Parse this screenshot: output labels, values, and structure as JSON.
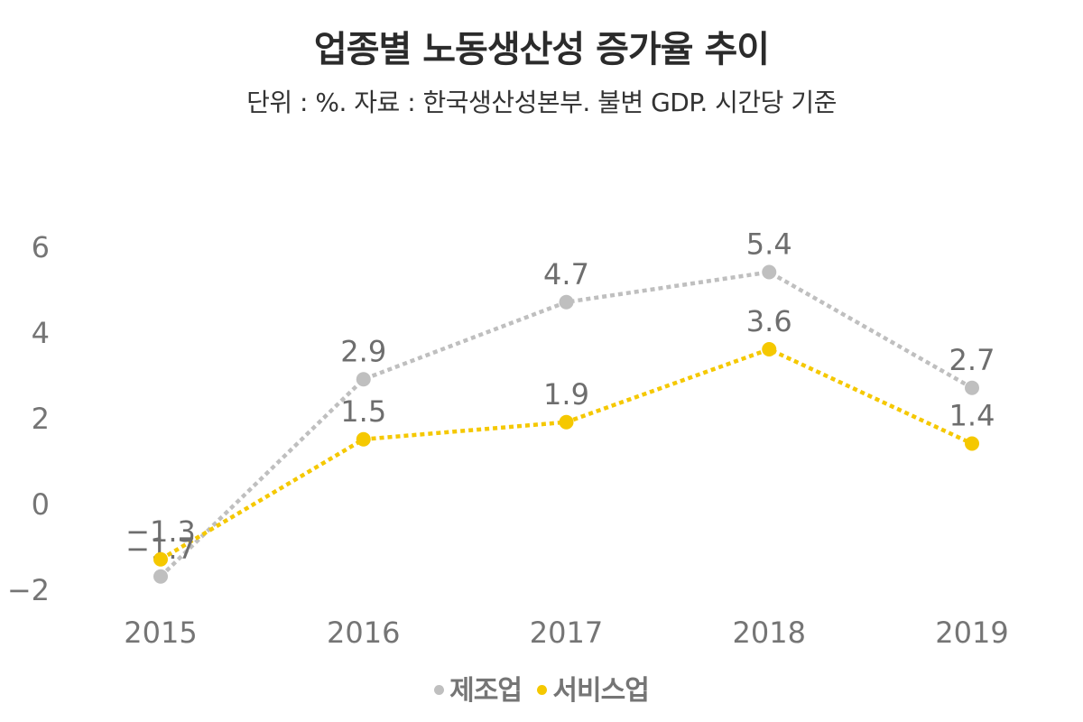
{
  "chart_data": {
    "type": "line",
    "title": "업종별 노동생산성 증가율 추이",
    "subtitle": "단위 : %. 자료 : 한국생산성본부. 불변 GDP. 시간당 기준",
    "xlabel": "",
    "ylabel": "",
    "categories": [
      "2015",
      "2016",
      "2017",
      "2018",
      "2019"
    ],
    "ylim": [
      -2,
      6
    ],
    "yticks": [
      6,
      4,
      2,
      0,
      -2
    ],
    "ytick_labels": [
      "6",
      "4",
      "2",
      "0",
      "−2"
    ],
    "grid": false,
    "legend_position": "bottom",
    "series": [
      {
        "name": "제조업",
        "color": "#bfbfbf",
        "values": [
          -1.7,
          2.9,
          4.7,
          5.4,
          2.7
        ],
        "labels": [
          "−1.7",
          "2.9",
          "4.7",
          "5.4",
          "2.7"
        ]
      },
      {
        "name": "서비스업",
        "color": "#f5c800",
        "values": [
          -1.3,
          1.5,
          1.9,
          3.6,
          1.4
        ],
        "labels": [
          "−1.3",
          "1.5",
          "1.9",
          "3.6",
          "1.4"
        ]
      }
    ]
  }
}
